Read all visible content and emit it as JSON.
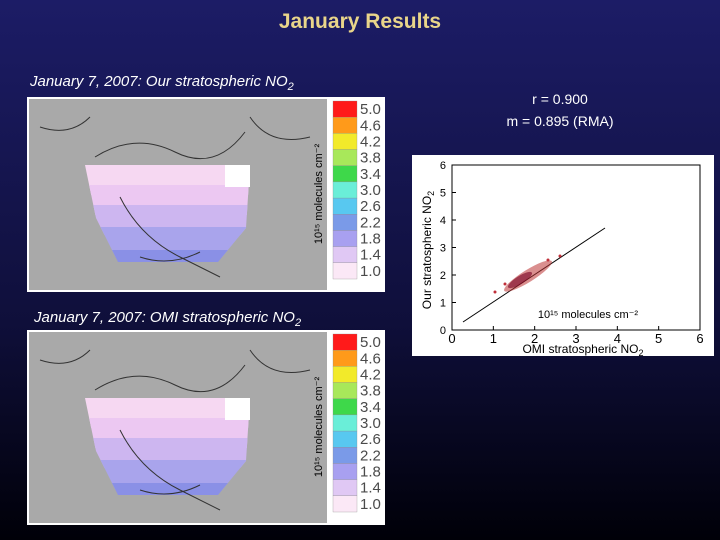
{
  "title": "January Results",
  "panels": [
    {
      "caption": {
        "text": "January 7, 2007: Our stratospheric NO",
        "subscript": "2"
      },
      "colorbar": {
        "label": "10¹⁵ molecules cm⁻²",
        "ticks": [
          "5.0",
          "4.6",
          "4.2",
          "3.8",
          "3.4",
          "3.0",
          "2.6",
          "2.2",
          "1.8",
          "1.4",
          "1.0"
        ]
      }
    },
    {
      "caption": {
        "text": "January 7, 2007: OMI stratospheric NO",
        "subscript": "2"
      },
      "colorbar": {
        "label": "10¹⁵ molecules cm⁻²",
        "ticks": [
          "5.0",
          "4.6",
          "4.2",
          "3.8",
          "3.4",
          "3.0",
          "2.6",
          "2.2",
          "1.8",
          "1.4",
          "1.0"
        ]
      }
    }
  ],
  "statistics": [
    "r = 0.900",
    "m = 0.895 (RMA)"
  ],
  "scatter": {
    "x_label": {
      "text": "OMI stratospheric NO",
      "subscript": "2"
    },
    "y_label": {
      "text": "Our stratospheric NO",
      "subscript": "2"
    },
    "units": "10¹⁵ molecules cm⁻²",
    "xlim": [
      0,
      6
    ],
    "ylim": [
      0,
      6
    ],
    "xticks": [
      0,
      1,
      2,
      3,
      4,
      5,
      6
    ],
    "yticks": [
      0,
      1,
      2,
      3,
      4,
      5,
      6
    ]
  }
}
